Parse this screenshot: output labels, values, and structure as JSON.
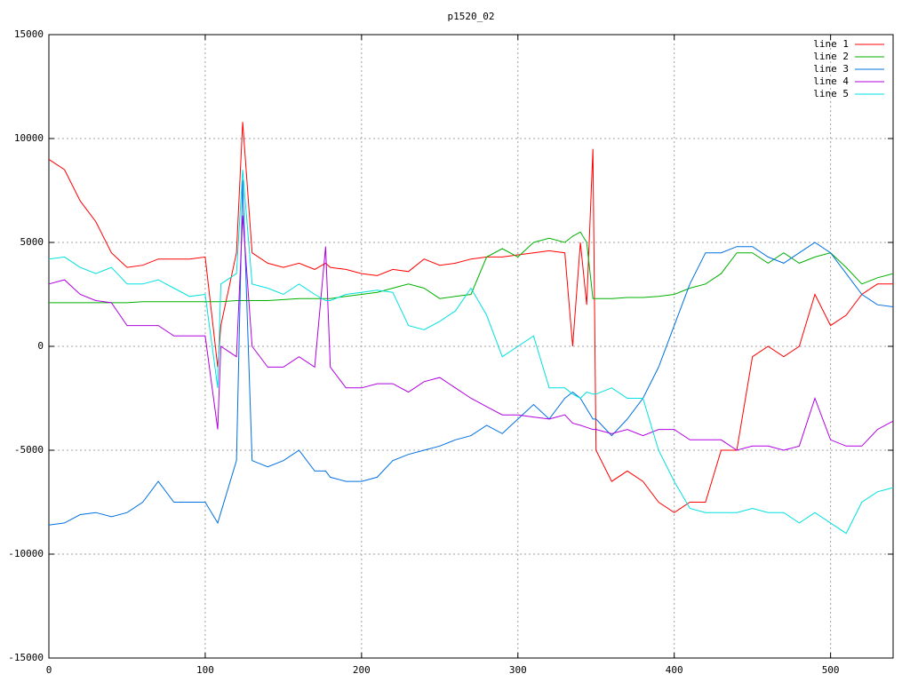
{
  "chart_data": {
    "type": "line",
    "title": "p1520_02",
    "x": [
      0,
      10,
      20,
      30,
      40,
      50,
      60,
      70,
      80,
      90,
      100,
      108,
      110,
      120,
      124,
      130,
      140,
      150,
      160,
      170,
      177,
      180,
      190,
      200,
      210,
      220,
      230,
      240,
      250,
      260,
      270,
      280,
      290,
      300,
      310,
      320,
      330,
      335,
      340,
      344,
      348,
      350,
      360,
      370,
      380,
      390,
      400,
      410,
      420,
      430,
      440,
      450,
      460,
      470,
      480,
      490,
      500,
      510,
      520,
      530,
      540
    ],
    "series": [
      {
        "name": "line 1",
        "color": "#ff0000",
        "values": [
          9000,
          8500,
          7000,
          6000,
          4500,
          3800,
          3900,
          4200,
          4200,
          4200,
          4300,
          -1000,
          1000,
          4500,
          10800,
          4500,
          4000,
          3800,
          4000,
          3700,
          4000,
          3800,
          3700,
          3500,
          3400,
          3700,
          3600,
          4200,
          3900,
          4000,
          4200,
          4300,
          4300,
          4400,
          4500,
          4600,
          4500,
          0,
          5000,
          2000,
          9500,
          -5000,
          -6500,
          -6000,
          -6500,
          -7500,
          -8000,
          -7500,
          -7500,
          -5000,
          -5000,
          -500,
          0,
          -500,
          0,
          2500,
          1000,
          1500,
          2500,
          3000,
          3000
        ]
      },
      {
        "name": "line 2",
        "color": "#00b000",
        "values": [
          2100,
          2100,
          2100,
          2100,
          2100,
          2100,
          2150,
          2150,
          2150,
          2150,
          2150,
          2150,
          2150,
          2200,
          2200,
          2200,
          2200,
          2250,
          2300,
          2300,
          2300,
          2300,
          2400,
          2500,
          2600,
          2800,
          3000,
          2800,
          2300,
          2400,
          2500,
          4300,
          4700,
          4300,
          5000,
          5200,
          5000,
          5300,
          5500,
          5000,
          2300,
          2300,
          2300,
          2350,
          2350,
          2400,
          2500,
          2800,
          3000,
          3500,
          4500,
          4500,
          4000,
          4500,
          4000,
          4300,
          4500,
          3800,
          3000,
          3300,
          3500
        ]
      },
      {
        "name": "line 3",
        "color": "#0070e0",
        "values": [
          -8600,
          -8500,
          -8100,
          -8000,
          -8200,
          -8000,
          -7500,
          -6500,
          -7500,
          -7500,
          -7500,
          -8500,
          -8000,
          -5500,
          8000,
          -5500,
          -5800,
          -5500,
          -5000,
          -6000,
          -6000,
          -6300,
          -6500,
          -6500,
          -6300,
          -5500,
          -5200,
          -5000,
          -4800,
          -4500,
          -4300,
          -3800,
          -4200,
          -3500,
          -2800,
          -3500,
          -2500,
          -2200,
          -2500,
          -3000,
          -3500,
          -3500,
          -4300,
          -3500,
          -2500,
          -1000,
          1000,
          3000,
          4500,
          4500,
          4800,
          4800,
          4300,
          4000,
          4500,
          5000,
          4500,
          3500,
          2500,
          2000,
          1900
        ]
      },
      {
        "name": "line 4",
        "color": "#b000e0",
        "values": [
          3000,
          3200,
          2500,
          2200,
          2100,
          1000,
          1000,
          1000,
          500,
          500,
          500,
          -4000,
          0,
          -500,
          6300,
          0,
          -1000,
          -1000,
          -500,
          -1000,
          4800,
          -1000,
          -2000,
          -2000,
          -1800,
          -1800,
          -2200,
          -1700,
          -1500,
          -2000,
          -2500,
          -2900,
          -3300,
          -3300,
          -3400,
          -3500,
          -3300,
          -3700,
          -3800,
          -3900,
          -4000,
          -4000,
          -4200,
          -4000,
          -4300,
          -4000,
          -4000,
          -4500,
          -4500,
          -4500,
          -5000,
          -4800,
          -4800,
          -5000,
          -4800,
          -2500,
          -4500,
          -4800,
          -4800,
          -4000,
          -3600
        ]
      },
      {
        "name": "line 5",
        "color": "#00e0e0",
        "values": [
          4200,
          4300,
          3800,
          3500,
          3800,
          3000,
          3000,
          3200,
          2800,
          2400,
          2500,
          -2000,
          3000,
          3500,
          8500,
          3000,
          2800,
          2500,
          3000,
          2500,
          2200,
          2200,
          2500,
          2600,
          2700,
          2600,
          1000,
          800,
          1200,
          1700,
          2800,
          1500,
          -500,
          0,
          500,
          -2000,
          -2000,
          -2300,
          -2500,
          -2200,
          -2300,
          -2300,
          -2000,
          -2500,
          -2500,
          -5000,
          -6500,
          -7800,
          -8000,
          -8000,
          -8000,
          -7800,
          -8000,
          -8000,
          -8500,
          -8000,
          -8500,
          -9000,
          -7500,
          -7000,
          -6800
        ]
      }
    ],
    "xlim": [
      0,
      540
    ],
    "xticks": [
      0,
      100,
      200,
      300,
      400,
      500
    ],
    "ylim": [
      -15000,
      15000
    ],
    "yticks": [
      -15000,
      -10000,
      -5000,
      0,
      5000,
      10000,
      15000
    ],
    "grid": true,
    "legend": "top-right"
  }
}
